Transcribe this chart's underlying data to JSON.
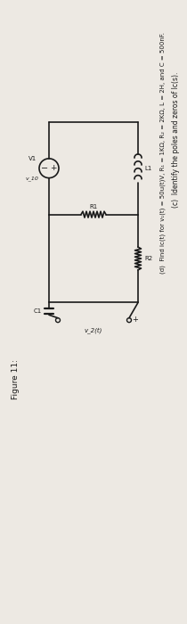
{
  "bg_color": "#ede9e3",
  "text_color": "#1a1a1a",
  "line_c": "(c)  Identify the poles and zeros of Iᴄ(s).",
  "line_d": "(d)  Find iᴄ(t) for v₁(t) = 50u(t)V, R₁ = 1KΩ, R₂ = 2KΩ, L = 2H, and C = 500nF.",
  "figure_label": "Figure 11:",
  "vs_label": "V1",
  "vs_sublabel": "v_10",
  "l1_label": "L1",
  "r1_label": "R1",
  "r2_label": "R2",
  "c1_label": "C1",
  "vo_label": "v_2(t)",
  "wire_color": "#1a1a1a",
  "lw": 1.2
}
